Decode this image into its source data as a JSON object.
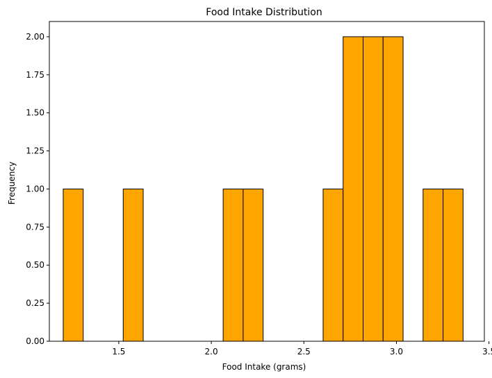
{
  "chart_data": {
    "type": "bar",
    "subtype": "histogram",
    "title": "Food Intake Distribution",
    "xlabel": "Food Intake (grams)",
    "ylabel": "Frequency",
    "xlim": [
      1.125,
      3.475
    ],
    "ylim": [
      0,
      2.1
    ],
    "xticks": [
      1.5,
      2.0,
      2.5,
      3.0,
      3.5
    ],
    "xtick_labels": [
      "1.5",
      "2.0",
      "2.5",
      "3.0",
      "3.5"
    ],
    "yticks": [
      0,
      0.25,
      0.5,
      0.75,
      1.0,
      1.25,
      1.5,
      1.75,
      2.0
    ],
    "ytick_labels": [
      "0.00",
      "0.25",
      "0.50",
      "0.75",
      "1.00",
      "1.25",
      "1.50",
      "1.75",
      "2.00"
    ],
    "bin_edges": [
      1.2,
      1.308,
      1.416,
      1.524,
      1.632,
      1.74,
      1.848,
      1.956,
      2.064,
      2.172,
      2.28,
      2.388,
      2.496,
      2.604,
      2.712,
      2.82,
      2.928,
      3.036,
      3.144,
      3.252,
      3.36
    ],
    "counts": [
      1,
      0,
      0,
      1,
      0,
      0,
      0,
      0,
      1,
      1,
      0,
      0,
      0,
      1,
      2,
      2,
      2,
      0,
      1,
      1
    ],
    "bar_color": "#ffa500",
    "edge_color": "#000000",
    "grid": false
  }
}
